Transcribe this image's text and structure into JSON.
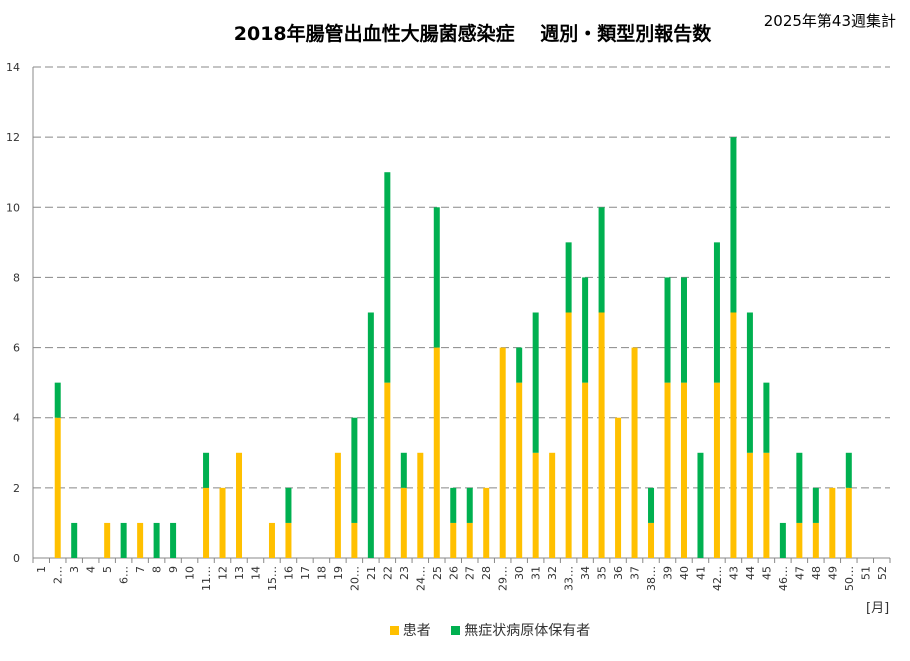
{
  "chart_data": {
    "type": "bar",
    "stacked": true,
    "title": "2018年腸管出血性大腸菌感染症　 週別・類型別報告数",
    "subtitle": "2025年第43週集計",
    "xlabel": "[月]",
    "ylabel": "",
    "ylim": [
      0,
      14
    ],
    "yticks": [
      0,
      2,
      4,
      6,
      8,
      10,
      12,
      14
    ],
    "grid": true,
    "legend_position": "bottom",
    "categories": [
      "1",
      "2…",
      "3",
      "4",
      "5",
      "6…",
      "7",
      "8",
      "9",
      "10",
      "11…",
      "12",
      "13",
      "14",
      "15…",
      "16",
      "17",
      "18",
      "19",
      "20…",
      "21",
      "22",
      "23",
      "24…",
      "25",
      "26",
      "27",
      "28",
      "29…",
      "30",
      "31",
      "32",
      "33…",
      "34",
      "35",
      "36",
      "37",
      "38…",
      "39",
      "40",
      "41",
      "42…",
      "43",
      "44",
      "45",
      "46…",
      "47",
      "48",
      "49",
      "50…",
      "51",
      "52"
    ],
    "series": [
      {
        "name": "患者",
        "color": "#FFC000",
        "values": [
          0,
          4,
          0,
          0,
          1,
          0,
          1,
          0,
          0,
          0,
          2,
          2,
          3,
          0,
          1,
          1,
          0,
          0,
          3,
          1,
          0,
          5,
          2,
          3,
          6,
          1,
          1,
          2,
          6,
          5,
          3,
          3,
          7,
          5,
          7,
          4,
          6,
          1,
          5,
          5,
          0,
          5,
          7,
          3,
          3,
          0,
          1,
          1,
          2,
          2,
          0,
          0
        ]
      },
      {
        "name": "無症状病原体保有者",
        "color": "#00B050",
        "values": [
          0,
          1,
          1,
          0,
          0,
          1,
          0,
          1,
          1,
          0,
          1,
          0,
          0,
          0,
          0,
          1,
          0,
          0,
          0,
          3,
          7,
          6,
          1,
          0,
          4,
          1,
          1,
          0,
          0,
          1,
          4,
          0,
          2,
          3,
          3,
          0,
          0,
          1,
          3,
          3,
          3,
          4,
          5,
          4,
          2,
          1,
          2,
          1,
          0,
          1,
          0,
          0
        ]
      }
    ]
  }
}
